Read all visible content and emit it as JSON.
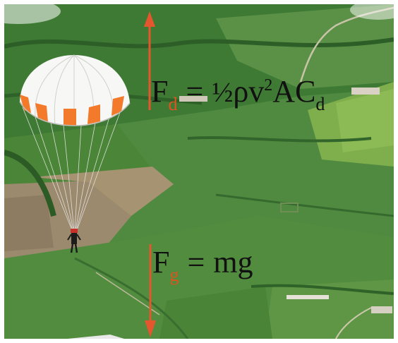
{
  "drag_equation": {
    "force_symbol": "F",
    "force_subscript": "d",
    "equals": "=",
    "half": "½",
    "rho": "ρ",
    "velocity": "v",
    "velocity_exponent": "2",
    "area": "A",
    "coefficient": "C",
    "coefficient_subscript": "d"
  },
  "gravity_equation": {
    "force_symbol": "F",
    "force_subscript": "g",
    "equals": "=",
    "rhs": "mg"
  },
  "colors": {
    "arrow": "#e4572e",
    "subscript": "#e0521f",
    "canopy_white": "#f7f7f5",
    "canopy_orange": "#f27a2a",
    "field_green": "#4f8a40"
  }
}
